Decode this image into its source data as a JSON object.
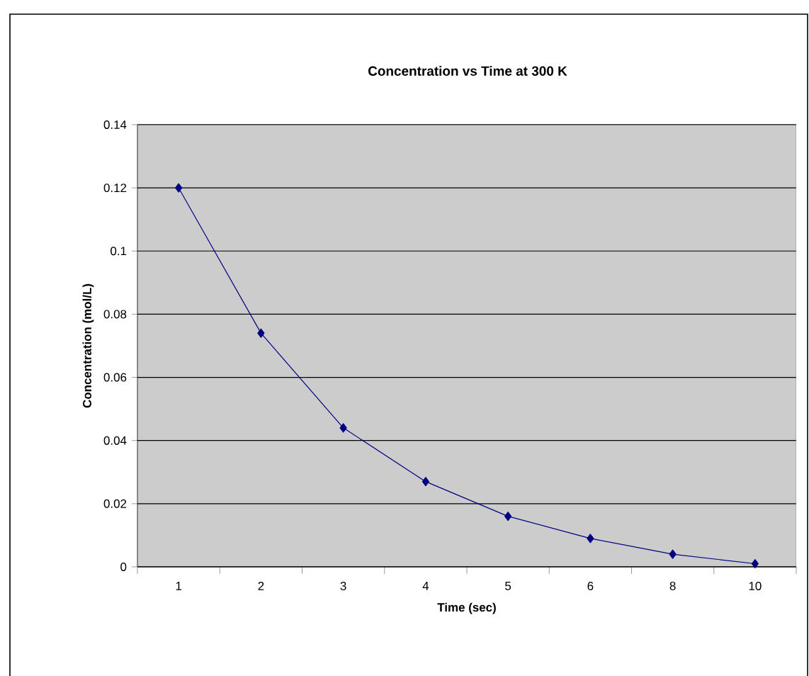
{
  "chart_data": {
    "type": "line",
    "title": "Concentration vs Time at 300 K",
    "xlabel": "Time (sec)",
    "ylabel": "Concentration (mol/L)",
    "categories": [
      "1",
      "2",
      "3",
      "4",
      "5",
      "6",
      "8",
      "10"
    ],
    "series": [
      {
        "color": "#000080",
        "values": [
          0.12,
          0.074,
          0.044,
          0.027,
          0.016,
          0.009,
          0.004,
          0.001
        ]
      }
    ],
    "ylim": [
      0,
      0.14
    ],
    "yticks": [
      0,
      0.02,
      0.04,
      0.06,
      0.08,
      0.1,
      0.12,
      0.14
    ],
    "grid": "y",
    "marker": "diamond",
    "line_style": "solid",
    "legend": false
  }
}
